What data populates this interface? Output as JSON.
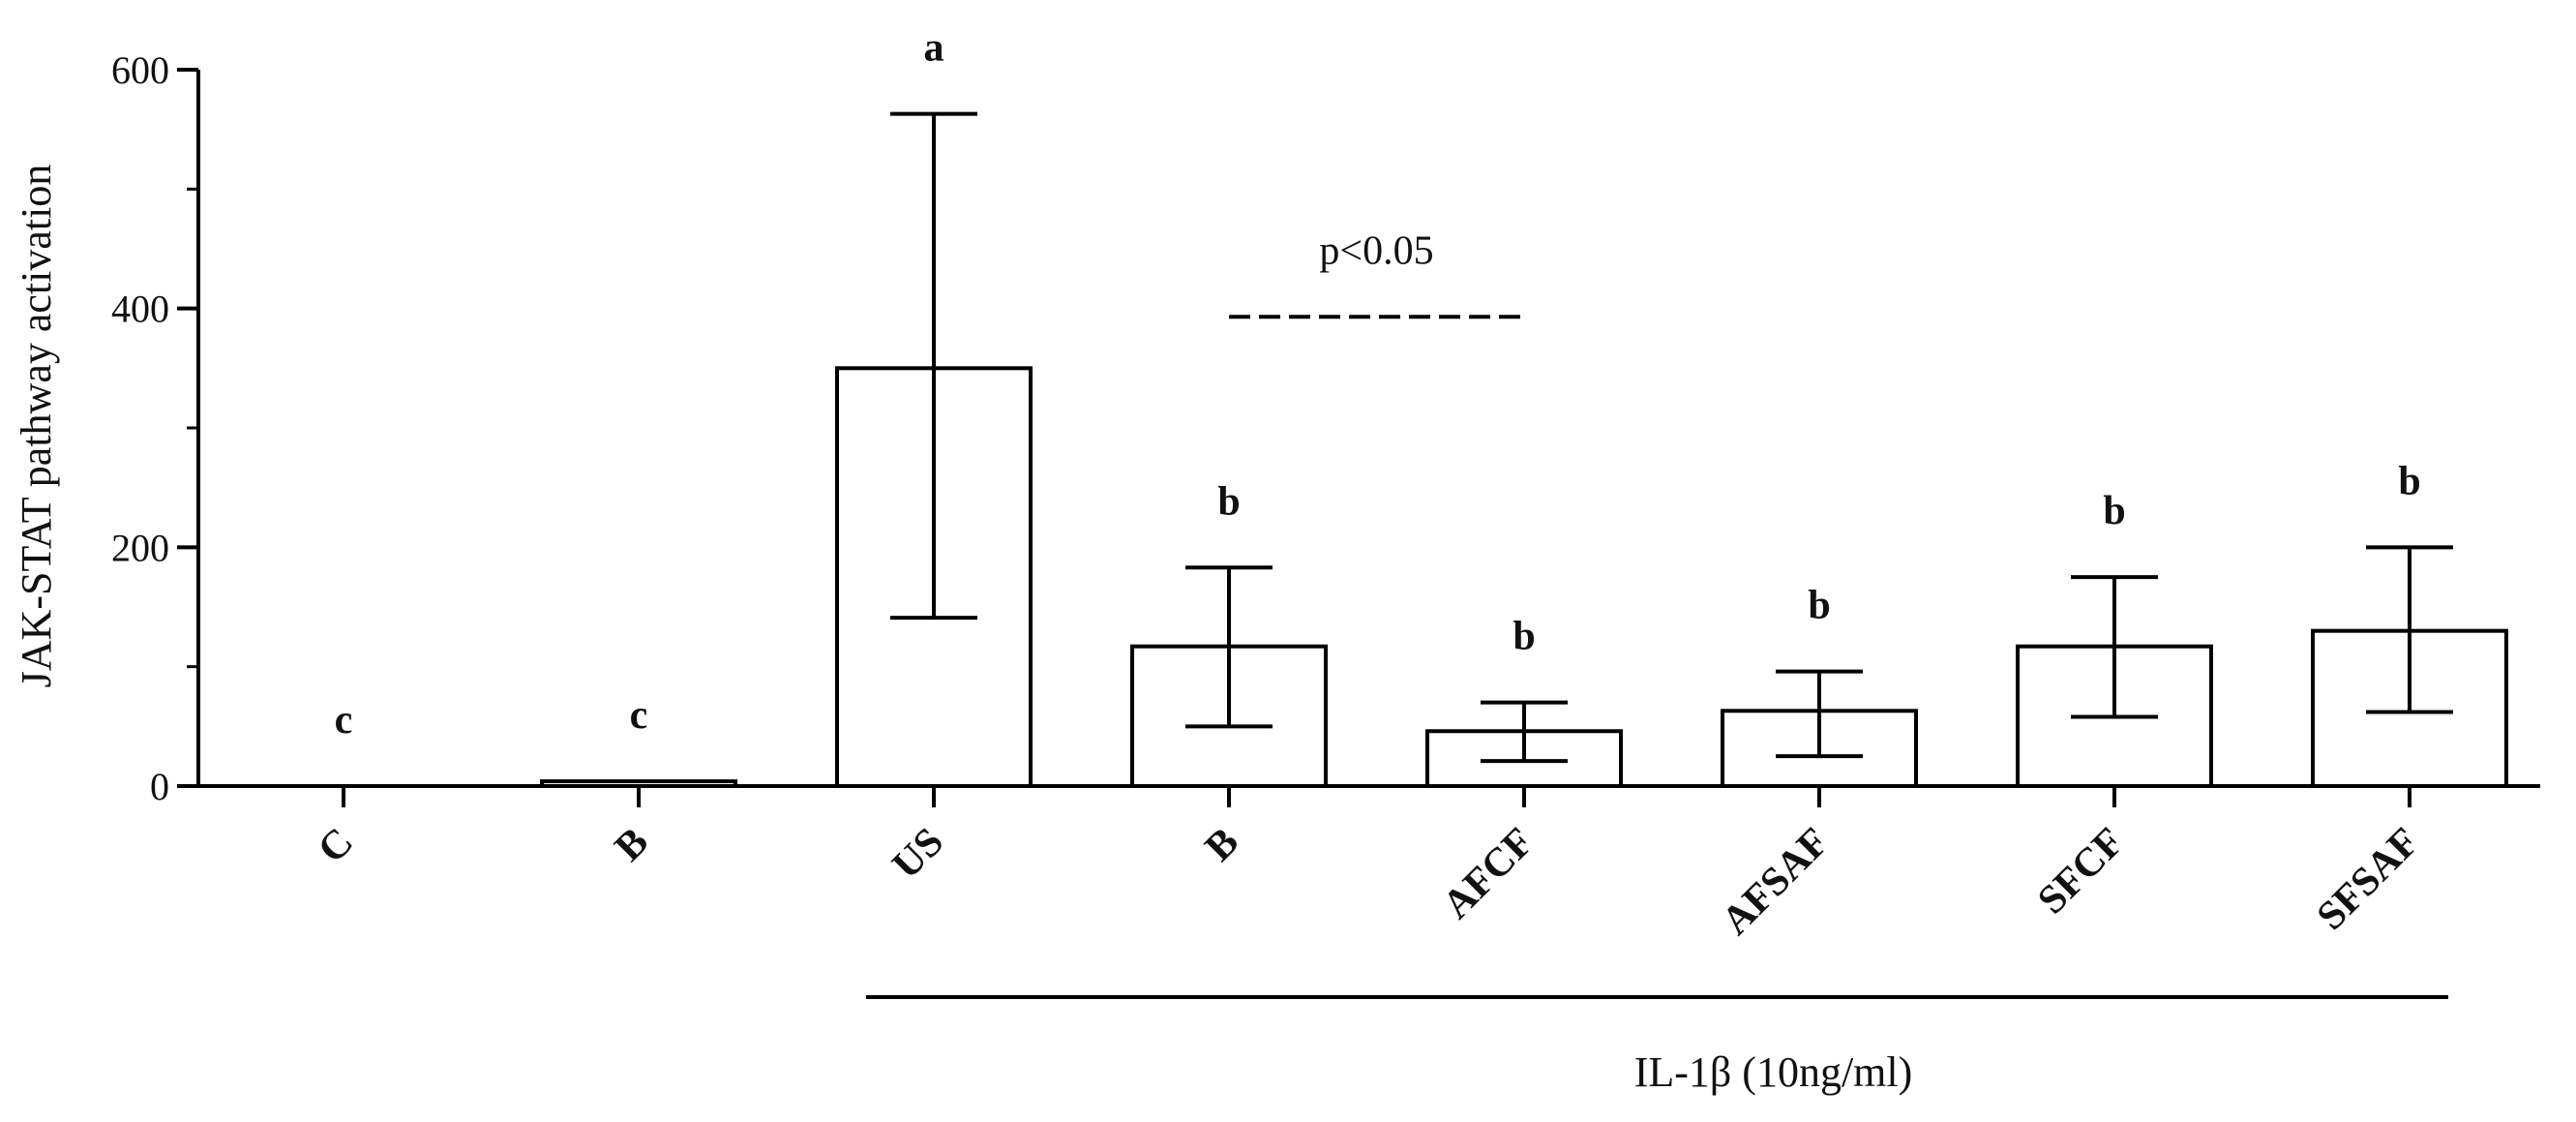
{
  "chart_data": {
    "type": "bar",
    "ylabel": "JAK-STAT pathway activation",
    "xlabel": "",
    "ylim": [
      0,
      600
    ],
    "yticks": [
      0,
      200,
      400,
      600
    ],
    "y_minor_step": 100,
    "categories": [
      "C",
      "B",
      "US",
      "B",
      "AFCF",
      "AFSAF",
      "SFCF",
      "SFSAF"
    ],
    "values": [
      0,
      4,
      350,
      117,
      46,
      63,
      117,
      130
    ],
    "error_upper": [
      0,
      0,
      563,
      183,
      70,
      96,
      175,
      200
    ],
    "error_lower": [
      0,
      0,
      141,
      50,
      21,
      25,
      58,
      62
    ],
    "significance_letters": [
      "c",
      "c",
      "a",
      "b",
      "b",
      "b",
      "b",
      "b"
    ],
    "annotation": {
      "text": "p<0.05",
      "from_category_index": 3,
      "to_category_index": 4
    },
    "group": {
      "label": "IL-1β (10ng/ml)",
      "from_category_index": 2,
      "to_category_index": 7
    },
    "bar_fill": "#ffffff",
    "bar_stroke": "#000000",
    "grid": false,
    "legend": "none"
  }
}
